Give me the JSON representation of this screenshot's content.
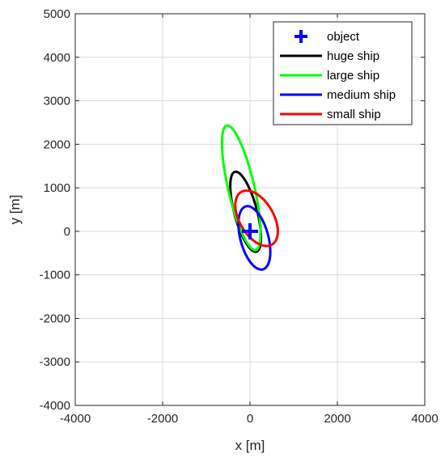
{
  "chart_data": {
    "type": "line",
    "title": "",
    "xlabel": "x [m]",
    "ylabel": "y [m]",
    "xlim": [
      -4000,
      4000
    ],
    "ylim": [
      -4000,
      5000
    ],
    "x_ticks": [
      -4000,
      -2000,
      0,
      2000,
      4000
    ],
    "y_ticks": [
      -4000,
      -3000,
      -2000,
      -1000,
      0,
      1000,
      2000,
      3000,
      4000,
      5000
    ],
    "x_tick_labels": [
      "-4000",
      "-2000",
      "0",
      "2000",
      "4000"
    ],
    "y_tick_labels": [
      "-4000",
      "-3000",
      "-2000",
      "-1000",
      "0",
      "1000",
      "2000",
      "3000",
      "4000",
      "5000"
    ],
    "grid": true,
    "legend_position": "top-right",
    "object": {
      "name": "object",
      "x": 0,
      "y": 0,
      "marker": "+",
      "color": "#0000ff"
    },
    "series": [
      {
        "name": "huge ship",
        "color": "#000000",
        "ellipse": {
          "cx": -100,
          "cy": 450,
          "semi_major": 950,
          "semi_minor": 260,
          "tilt_deg_from_vertical": 15
        }
      },
      {
        "name": "large ship",
        "color": "#00ff00",
        "ellipse": {
          "cx": -200,
          "cy": 1000,
          "semi_major": 1470,
          "semi_minor": 300,
          "tilt_deg_from_vertical": 13
        }
      },
      {
        "name": "medium ship",
        "color": "#0000ff",
        "ellipse": {
          "cx": 100,
          "cy": -150,
          "semi_major": 750,
          "semi_minor": 320,
          "tilt_deg_from_vertical": 15
        }
      },
      {
        "name": "small ship",
        "color": "#ff0000",
        "ellipse": {
          "cx": 150,
          "cy": 300,
          "semi_major": 700,
          "semi_minor": 390,
          "tilt_deg_from_vertical": 30
        }
      }
    ]
  }
}
